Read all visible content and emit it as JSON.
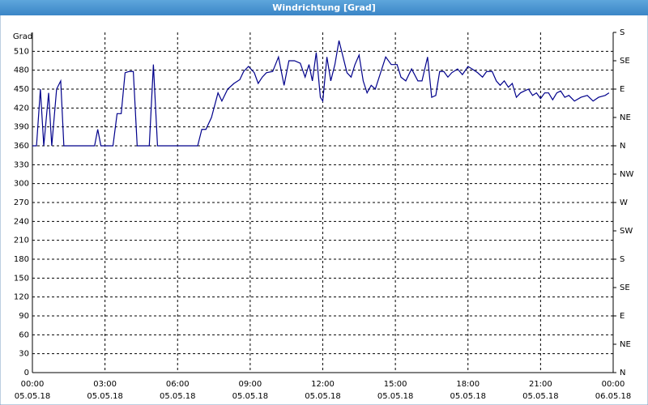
{
  "chart_data": {
    "type": "line",
    "title": "Windrichtung [Grad]",
    "y_label": "Grad",
    "x": [
      0,
      0.17,
      0.33,
      0.47,
      0.67,
      0.8,
      1,
      1.17,
      1.3,
      2.57,
      2.7,
      2.83,
      3.33,
      3.5,
      3.67,
      3.83,
      4,
      4.17,
      4.33,
      4.83,
      5,
      5.17,
      6.83,
      7,
      7.17,
      7.4,
      7.67,
      7.83,
      8.07,
      8.33,
      8.57,
      8.73,
      8.93,
      9.17,
      9.33,
      9.5,
      9.67,
      9.93,
      10.17,
      10.4,
      10.6,
      10.83,
      11.07,
      11.27,
      11.43,
      11.57,
      11.73,
      11.9,
      12,
      12.17,
      12.33,
      12.5,
      12.67,
      13,
      13.17,
      13.33,
      13.5,
      13.67,
      13.83,
      14,
      14.17,
      14.33,
      14.6,
      14.83,
      15.07,
      15.23,
      15.43,
      15.67,
      15.93,
      16.1,
      16.33,
      16.5,
      16.67,
      16.83,
      17,
      17.17,
      17.33,
      17.57,
      17.77,
      18,
      18.17,
      18.4,
      18.6,
      18.77,
      19,
      19.17,
      19.33,
      19.5,
      19.67,
      19.83,
      20,
      20.17,
      20.33,
      20.5,
      20.67,
      20.83,
      21,
      21.17,
      21.33,
      21.5,
      21.67,
      21.83,
      22,
      22.17,
      22.4,
      22.67,
      22.93,
      23.17,
      23.4,
      23.67,
      23.83
    ],
    "series": [
      {
        "color": "#00008b",
        "values": [
          360,
          360,
          450,
          360,
          444,
          360,
          450,
          463,
          360,
          360,
          386,
          360,
          360,
          411,
          411,
          476,
          478,
          478,
          360,
          360,
          489,
          360,
          360,
          386,
          386,
          405,
          444,
          431,
          450,
          459,
          465,
          478,
          486,
          476,
          459,
          469,
          476,
          478,
          501,
          456,
          495,
          495,
          491,
          469,
          489,
          463,
          508,
          437,
          431,
          501,
          463,
          489,
          527,
          476,
          469,
          489,
          504,
          463,
          444,
          456,
          450,
          469,
          501,
          489,
          489,
          469,
          463,
          482,
          463,
          463,
          501,
          437,
          440,
          478,
          478,
          469,
          476,
          482,
          473,
          486,
          482,
          476,
          469,
          478,
          478,
          463,
          456,
          463,
          453,
          459,
          437,
          444,
          447,
          450,
          440,
          444,
          435,
          444,
          444,
          433,
          444,
          447,
          437,
          440,
          431,
          437,
          440,
          431,
          437,
          440,
          444
        ]
      }
    ],
    "xlim": [
      0,
      24
    ],
    "xticks": [
      {
        "value": 0,
        "label": "00:00"
      },
      {
        "value": 3,
        "label": "03:00"
      },
      {
        "value": 6,
        "label": "06:00"
      },
      {
        "value": 9,
        "label": "09:00"
      },
      {
        "value": 12,
        "label": "12:00"
      },
      {
        "value": 15,
        "label": "15:00"
      },
      {
        "value": 18,
        "label": "18:00"
      },
      {
        "value": 21,
        "label": "21:00"
      },
      {
        "value": 24,
        "label": "00:00"
      }
    ],
    "xtick_dates": [
      "05.05.18",
      "05.05.18",
      "05.05.18",
      "05.05.18",
      "05.05.18",
      "05.05.18",
      "05.05.18",
      "05.05.18",
      "06.05.18"
    ],
    "ylim": [
      0,
      540
    ],
    "yticks": [
      0,
      30,
      60,
      90,
      120,
      150,
      180,
      210,
      240,
      270,
      300,
      330,
      360,
      390,
      420,
      450,
      480,
      510
    ],
    "y2lim": [
      0,
      540
    ],
    "y2ticks": [
      {
        "value": 0,
        "label": "N"
      },
      {
        "value": 45,
        "label": "NE"
      },
      {
        "value": 90,
        "label": "E"
      },
      {
        "value": 135,
        "label": "SE"
      },
      {
        "value": 180,
        "label": "S"
      },
      {
        "value": 225,
        "label": "SW"
      },
      {
        "value": 270,
        "label": "W"
      },
      {
        "value": 315,
        "label": "NW"
      },
      {
        "value": 360,
        "label": "N"
      },
      {
        "value": 405,
        "label": "NE"
      },
      {
        "value": 450,
        "label": "E"
      },
      {
        "value": 495,
        "label": "SE"
      },
      {
        "value": 540,
        "label": "S"
      }
    ],
    "grid": true
  }
}
